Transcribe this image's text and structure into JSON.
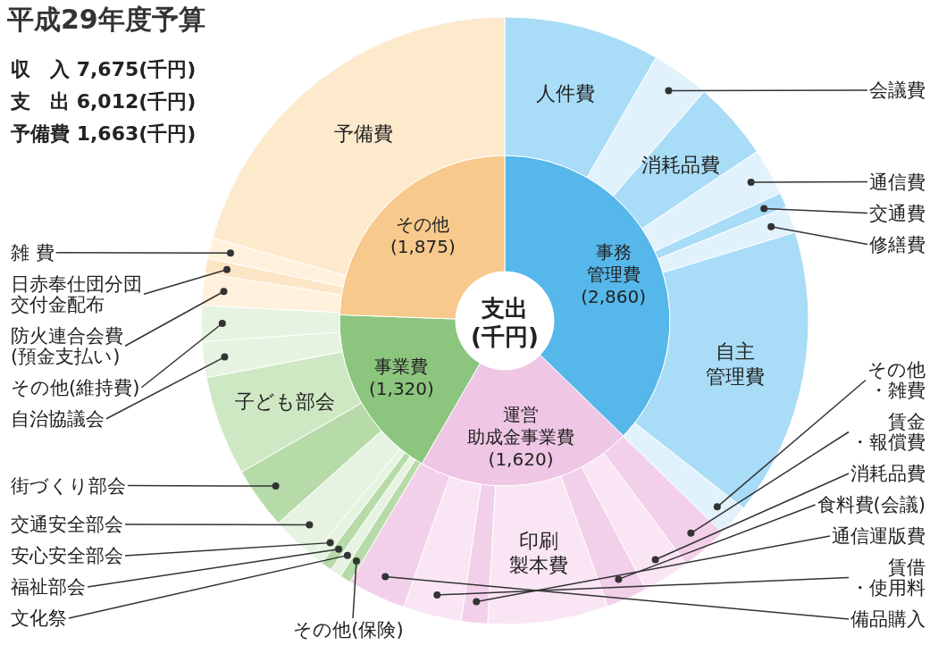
{
  "chart_data": [
    {
      "type": "donut",
      "title": "平成29年度予算",
      "subtitle": "支出\n(千円)",
      "annotations": [
        "収　入 7,675(千円)",
        "支　出 6,012(千円)",
        "予備費 1,663(千円)"
      ],
      "categories": [
        "事務管理費",
        "運営助成金事業費",
        "事業費",
        "その他"
      ],
      "values": [
        2860,
        1620,
        1320,
        1875
      ],
      "value_labels": [
        "(2,860)",
        "(1,620)",
        "(1,320)",
        "(1,875)"
      ],
      "colors": [
        "#56b7ea",
        "#efc6e4",
        "#8cc57e",
        "#f8c98c"
      ]
    },
    {
      "type": "donut",
      "categories": [
        "人件費",
        "会議費",
        "消耗品費",
        "通信費",
        "交通費",
        "修繕費",
        "自主管理費",
        "その他・雑費",
        "賃金・報償費",
        "消耗品費",
        "食料費(会議)",
        "印刷製本費",
        "通信運版費",
        "賃借・使用料",
        "備品購入",
        "その他(保険)",
        "文化祭",
        "福祉部会",
        "安心安全部会",
        "交通安全部会",
        "街づくり部会",
        "子ども部会",
        "自治協議会",
        "その他(維持費)",
        "防火連合会費\n(預金支払い)",
        "日赤奉仕団分団交付金配布",
        "雑 費",
        "予備費"
      ],
      "values": [
        8.3,
        3.1,
        4.2,
        2.5,
        0.8,
        1.4,
        15.3,
        1.7,
        2.5,
        2.5,
        2.2,
        6.4,
        1.4,
        3.1,
        3.1,
        0.6,
        0.6,
        0.6,
        0.6,
        2.5,
        3.3,
        5.3,
        1.9,
        1.9,
        1.7,
        0.8,
        1.1,
        20.6
      ],
      "colors": [
        "#a9dcf6",
        "#e1f2fc",
        "#a9dcf6",
        "#e1f2fc",
        "#a9dcf6",
        "#e1f2fc",
        "#a9dcf6",
        "#e1f2fc",
        "#f3d0ea",
        "#f9e5f3",
        "#f3d0ea",
        "#f9e5f3",
        "#f3d0ea",
        "#f9e5f3",
        "#f3d0ea",
        "#b6dba9",
        "#e6f3e0",
        "#b6dba9",
        "#e6f3e0",
        "#e6f3e0",
        "#b6dba9",
        "#cfe8c4",
        "#e6f3e0",
        "#e6f3e0",
        "#fff1dc",
        "#fde6c6",
        "#fff1dc",
        "#fde9cc"
      ]
    }
  ]
}
